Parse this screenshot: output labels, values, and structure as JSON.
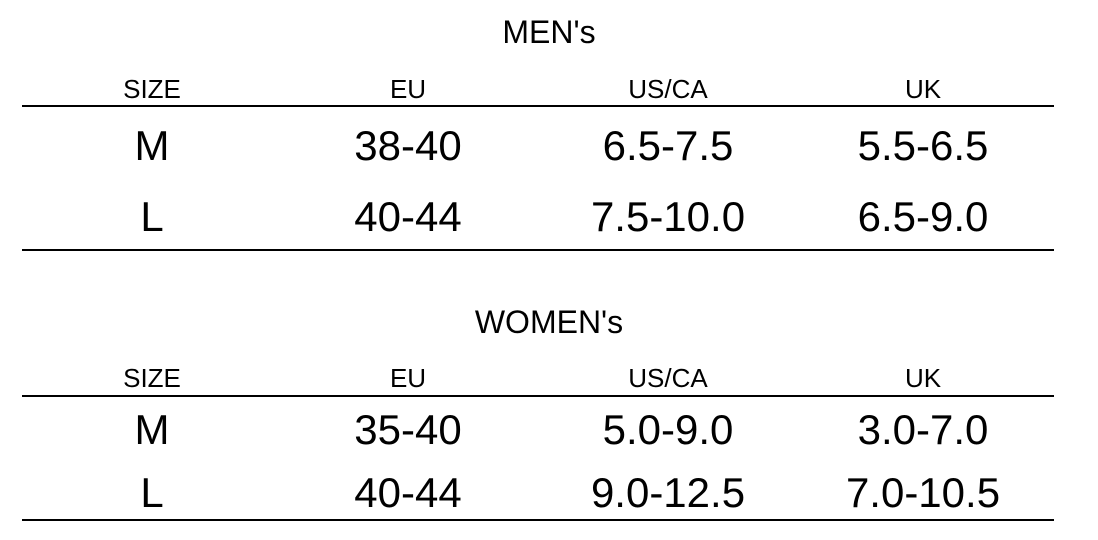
{
  "tables": [
    {
      "title": "MEN's",
      "header": [
        "SIZE",
        "EU",
        "US/CA",
        "UK"
      ],
      "rows": [
        [
          "M",
          "38-40",
          "6.5-7.5",
          "5.5-6.5"
        ],
        [
          "L",
          "40-44",
          "7.5-10.0",
          "6.5-9.0"
        ]
      ]
    },
    {
      "title": "WOMEN's",
      "header": [
        "SIZE",
        "EU",
        "US/CA",
        "UK"
      ],
      "rows": [
        [
          "M",
          "35-40",
          "5.0-9.0",
          "3.0-7.0"
        ],
        [
          "L",
          "40-44",
          "9.0-12.5",
          "7.0-10.5"
        ]
      ]
    }
  ]
}
